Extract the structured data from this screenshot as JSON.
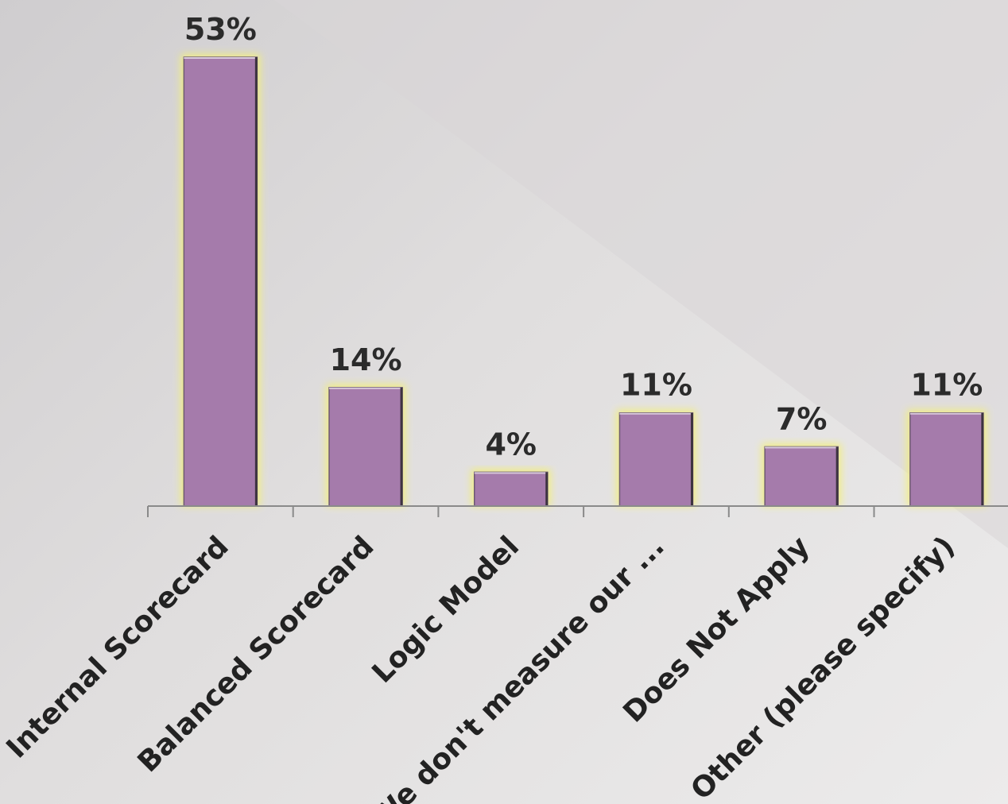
{
  "chart_data": {
    "type": "bar",
    "categories": [
      "Internal Scorecard",
      "Balanced Scorecard",
      "Logic Model",
      "We don't measure our ...",
      "Does Not Apply",
      "Other (please specify)"
    ],
    "values": [
      53,
      14,
      4,
      11,
      7,
      11
    ],
    "data_labels": [
      "53%",
      "14%",
      "4%",
      "11%",
      "7%",
      "11%"
    ],
    "value_unit": "%",
    "ylim": [
      0,
      53
    ],
    "grid": false,
    "legend": "none",
    "title": "",
    "xlabel": "",
    "ylabel": "",
    "colors": {
      "bar_fill": "#a57bab",
      "bar_glow": "#f3ef7a",
      "axis": "#8a8a8a",
      "text": "#222222"
    }
  }
}
